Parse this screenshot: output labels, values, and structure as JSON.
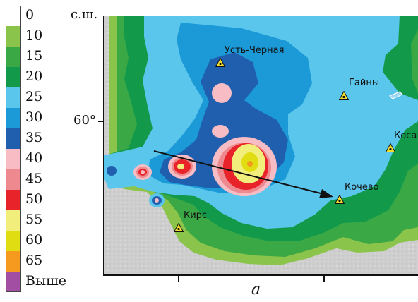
{
  "legend": {
    "items": [
      {
        "label": "0",
        "color": "#ffffff"
      },
      {
        "label": "10",
        "color": "#8bc44a"
      },
      {
        "label": "15",
        "color": "#3aa845"
      },
      {
        "label": "20",
        "color": "#129a4a"
      },
      {
        "label": "25",
        "color": "#5bc6ec"
      },
      {
        "label": "30",
        "color": "#1c9ad8"
      },
      {
        "label": "35",
        "color": "#1f5fae"
      },
      {
        "label": "40",
        "color": "#f7bcc4"
      },
      {
        "label": "45",
        "color": "#ee8a8f"
      },
      {
        "label": "50",
        "color": "#e82329"
      },
      {
        "label": "55",
        "color": "#f2ee7c"
      },
      {
        "label": "60",
        "color": "#e1dd13"
      },
      {
        "label": "65",
        "color": "#f59a1f"
      },
      {
        "label": "Выше",
        "color": "#a24ea3"
      }
    ]
  },
  "axes": {
    "north_label": "с.ш.",
    "lat_label": "60°",
    "panel_letter": "a"
  },
  "places": [
    {
      "name": "Усть-Черная",
      "key": "ust-chernaya"
    },
    {
      "name": "Гайны",
      "key": "gayny"
    },
    {
      "name": "Коса",
      "key": "kosa"
    },
    {
      "name": "Кочево",
      "key": "kochevo"
    },
    {
      "name": "Кирс",
      "key": "kirs"
    }
  ]
}
